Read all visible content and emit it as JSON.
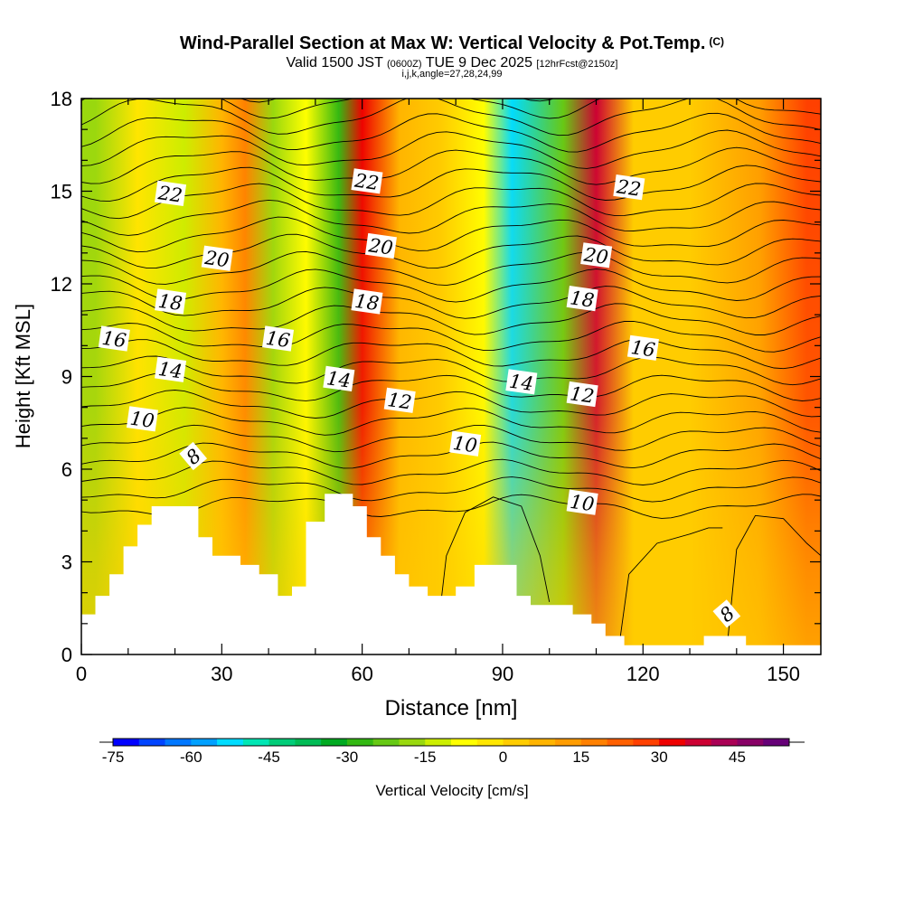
{
  "header": {
    "title": "Wind-Parallel Section at Max W: Vertical Velocity & Pot.Temp.",
    "copyright": "(C)",
    "valid_prefix": "Valid 1500 JST",
    "valid_utc": "(0600Z)",
    "valid_date": "TUE 9 Dec 2025",
    "forecast": "[12hrFcst@2150z]",
    "indices": "i,j,k,angle=27,28,24,99"
  },
  "chart_data": {
    "type": "heatmap",
    "title": "Wind-Parallel Section at Max W: Vertical Velocity & Pot.Temp.",
    "xlabel": "Distance [nm]",
    "ylabel": "Height [Kft MSL]",
    "xlim": [
      0,
      158
    ],
    "ylim": [
      0,
      18
    ],
    "x_ticks": [
      "0",
      "30",
      "60",
      "90",
      "120",
      "150"
    ],
    "y_ticks": [
      "0",
      "3",
      "6",
      "9",
      "12",
      "15",
      "18"
    ],
    "colorbar": {
      "label": "Vertical Velocity [cm/s]",
      "tick_labels": [
        "-75",
        "-60",
        "-45",
        "-30",
        "-15",
        "0",
        "15",
        "30",
        "45"
      ],
      "levels": [
        -75,
        -70,
        -65,
        -60,
        -55,
        -50,
        -45,
        -40,
        -35,
        -30,
        -25,
        -20,
        -15,
        -10,
        -5,
        0,
        5,
        10,
        15,
        20,
        25,
        30,
        35,
        40,
        45,
        50
      ],
      "colors": [
        "#0000ff",
        "#0044ff",
        "#0077ff",
        "#00a0ff",
        "#00dcff",
        "#00e6b4",
        "#00cc78",
        "#00bb55",
        "#00aa22",
        "#33b812",
        "#66c814",
        "#99d80e",
        "#ccee00",
        "#ffff00",
        "#ffe600",
        "#ffcc00",
        "#ffb400",
        "#ff9c00",
        "#ff8000",
        "#ff6000",
        "#ff4000",
        "#ee0000",
        "#cc0033",
        "#aa0055",
        "#880066",
        "#660077"
      ]
    },
    "vertical_velocity_bands": [
      {
        "x": 3,
        "w": -18
      },
      {
        "x": 12,
        "w": -4
      },
      {
        "x": 22,
        "w": -14
      },
      {
        "x": 30,
        "w": 8
      },
      {
        "x": 35,
        "w": 18
      },
      {
        "x": 41,
        "w": -20
      },
      {
        "x": 48,
        "w": -10
      },
      {
        "x": 55,
        "w": -26
      },
      {
        "x": 60,
        "w": 32
      },
      {
        "x": 68,
        "w": 6
      },
      {
        "x": 77,
        "w": 3
      },
      {
        "x": 86,
        "w": -10
      },
      {
        "x": 92,
        "w": -52
      },
      {
        "x": 103,
        "w": -22
      },
      {
        "x": 110,
        "w": 38
      },
      {
        "x": 118,
        "w": 2
      },
      {
        "x": 130,
        "w": 3
      },
      {
        "x": 145,
        "w": 14
      },
      {
        "x": 155,
        "w": 26
      }
    ],
    "potential_temperature_labels": [
      {
        "text": "22",
        "x": 19,
        "y": 14.9
      },
      {
        "text": "22",
        "x": 61,
        "y": 15.3
      },
      {
        "text": "22",
        "x": 117,
        "y": 15.1
      },
      {
        "text": "20",
        "x": 29,
        "y": 12.8
      },
      {
        "text": "20",
        "x": 64,
        "y": 13.2
      },
      {
        "text": "20",
        "x": 110,
        "y": 12.9
      },
      {
        "text": "18",
        "x": 19,
        "y": 11.4
      },
      {
        "text": "18",
        "x": 61,
        "y": 11.4
      },
      {
        "text": "18",
        "x": 107,
        "y": 11.5
      },
      {
        "text": "16",
        "x": 7,
        "y": 10.2
      },
      {
        "text": "16",
        "x": 42,
        "y": 10.2
      },
      {
        "text": "16",
        "x": 120,
        "y": 9.9
      },
      {
        "text": "14",
        "x": 19,
        "y": 9.2
      },
      {
        "text": "14",
        "x": 55,
        "y": 8.9
      },
      {
        "text": "14",
        "x": 94,
        "y": 8.8
      },
      {
        "text": "12",
        "x": 68,
        "y": 8.2
      },
      {
        "text": "12",
        "x": 107,
        "y": 8.4
      },
      {
        "text": "10",
        "x": 13,
        "y": 7.6
      },
      {
        "text": "10",
        "x": 82,
        "y": 6.8
      },
      {
        "text": "10",
        "x": 107,
        "y": 4.9
      },
      {
        "text": "8",
        "x": 24,
        "y": 6.4
      },
      {
        "text": "8",
        "x": 138,
        "y": 1.3
      }
    ],
    "terrain_profile": [
      [
        0,
        1.3
      ],
      [
        3,
        1.3
      ],
      [
        3,
        1.9
      ],
      [
        6,
        1.9
      ],
      [
        6,
        2.6
      ],
      [
        9,
        2.6
      ],
      [
        9,
        3.5
      ],
      [
        12,
        3.5
      ],
      [
        12,
        4.2
      ],
      [
        15,
        4.2
      ],
      [
        15,
        4.8
      ],
      [
        25,
        4.8
      ],
      [
        25,
        3.8
      ],
      [
        28,
        3.8
      ],
      [
        28,
        3.2
      ],
      [
        34,
        3.2
      ],
      [
        34,
        2.9
      ],
      [
        38,
        2.9
      ],
      [
        38,
        2.6
      ],
      [
        42,
        2.6
      ],
      [
        42,
        1.9
      ],
      [
        45,
        1.9
      ],
      [
        45,
        2.2
      ],
      [
        48,
        2.2
      ],
      [
        48,
        4.3
      ],
      [
        52,
        4.3
      ],
      [
        52,
        5.2
      ],
      [
        58,
        5.2
      ],
      [
        58,
        4.8
      ],
      [
        61,
        4.8
      ],
      [
        61,
        3.8
      ],
      [
        64,
        3.8
      ],
      [
        64,
        3.2
      ],
      [
        67,
        3.2
      ],
      [
        67,
        2.6
      ],
      [
        70,
        2.6
      ],
      [
        70,
        2.2
      ],
      [
        74,
        2.2
      ],
      [
        74,
        1.9
      ],
      [
        80,
        1.9
      ],
      [
        80,
        2.2
      ],
      [
        84,
        2.2
      ],
      [
        84,
        2.9
      ],
      [
        93,
        2.9
      ],
      [
        93,
        1.9
      ],
      [
        96,
        1.9
      ],
      [
        96,
        1.6
      ],
      [
        105,
        1.6
      ],
      [
        105,
        1.3
      ],
      [
        109,
        1.3
      ],
      [
        109,
        1.0
      ],
      [
        112,
        1.0
      ],
      [
        112,
        0.6
      ],
      [
        116,
        0.6
      ],
      [
        116,
        0.3
      ],
      [
        133,
        0.3
      ],
      [
        133,
        0.6
      ],
      [
        142,
        0.6
      ],
      [
        142,
        0.3
      ],
      [
        158,
        0.3
      ]
    ]
  }
}
